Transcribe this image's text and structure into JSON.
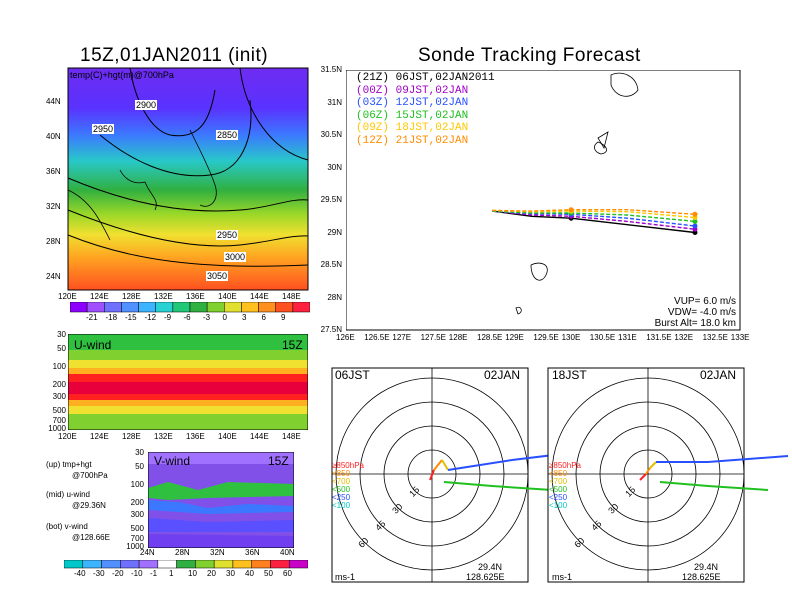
{
  "left_top": {
    "title": "15Z,01JAN2011 (init)",
    "field_label": "temp(C)+hgt(m)@700hPa",
    "lon_ticks": [
      "120E",
      "124E",
      "128E",
      "132E",
      "136E",
      "140E",
      "144E",
      "148E"
    ],
    "lat_ticks": [
      "24N",
      "28N",
      "32N",
      "36N",
      "40N",
      "44N"
    ],
    "contour_labels": [
      "2900",
      "2950",
      "2850",
      "2950",
      "3000",
      "3050"
    ],
    "colorbar_labels": [
      "-21",
      "-18",
      "-15",
      "-12",
      "-9",
      "-6",
      "-3",
      "0",
      "3",
      "6",
      "9"
    ],
    "colorbar_colors": [
      "#8c00ff",
      "#a050ff",
      "#7070ff",
      "#5090ff",
      "#3cb4ff",
      "#28d2d2",
      "#20c878",
      "#30b040",
      "#80d030",
      "#e0e030",
      "#ffc020",
      "#ff9020",
      "#ff5020",
      "#ff2040"
    ]
  },
  "u_wind": {
    "label": "U-wind",
    "time": "15Z",
    "p_ticks": [
      "30",
      "50",
      "100",
      "200",
      "300",
      "500",
      "700",
      "1000"
    ],
    "lon_ticks": [
      "120E",
      "124E",
      "128E",
      "132E",
      "136E",
      "140E",
      "144E",
      "148E"
    ]
  },
  "v_wind": {
    "label": "V-wind",
    "time": "15Z",
    "p_ticks": [
      "30",
      "50",
      "100",
      "200",
      "300",
      "500",
      "700",
      "1000"
    ],
    "lat_ticks": [
      "24N",
      "28N",
      "32N",
      "36N",
      "40N"
    ]
  },
  "legend_notes": {
    "up_1": "(up) tmp+hgt",
    "up_2": "@700hPa",
    "mid_1": "(mid) u-wind",
    "mid_2": "@29.36N",
    "bot_1": "(bot) v-wind",
    "bot_2": "@128.66E"
  },
  "wind_colorbar": {
    "labels": [
      "-40",
      "-30",
      "-20",
      "-10",
      "-1",
      "1",
      "10",
      "20",
      "30",
      "40",
      "50",
      "60"
    ],
    "colors": [
      "#00c8c8",
      "#3cb4ff",
      "#5090ff",
      "#7070ff",
      "#a070ff",
      "#ffffff",
      "#30b040",
      "#80d030",
      "#e0e030",
      "#ffc020",
      "#ff8020",
      "#ff2040",
      "#c800c8"
    ]
  },
  "tracking": {
    "title": "Sonde Tracking Forecast",
    "lat_ticks": [
      "31.5N",
      "31N",
      "30.5N",
      "30N",
      "29.5N",
      "29N",
      "28.5N",
      "28N",
      "27.5N"
    ],
    "lon_ticks": [
      "126E",
      "126.5E",
      "127E",
      "127.5E",
      "128E",
      "128.5E",
      "129E",
      "129.5E",
      "130E",
      "130.5E",
      "131E",
      "131.5E",
      "132E",
      "132.5E",
      "133E"
    ],
    "runs": [
      {
        "label": "(21Z)  06JST,02JAN2011",
        "color": "#000000"
      },
      {
        "label": "(00Z)  09JST,02JAN",
        "color": "#a000c8"
      },
      {
        "label": "(03Z)  12JST,02JAN",
        "color": "#2850ff"
      },
      {
        "label": "(06Z)  15JST,02JAN",
        "color": "#20c020"
      },
      {
        "label": "(09Z)  18JST,02JAN",
        "color": "#ffc800"
      },
      {
        "label": "(12Z)  21JST,02JAN",
        "color": "#ff8c00"
      }
    ],
    "vup": "VUP=  6.0  m/s",
    "vdw": "VDW=  -4.0  m/s",
    "burst": "Burst Alt=  18.0  km"
  },
  "hodo_left": {
    "time": "06JST",
    "date": "02JAN",
    "lat": "29.4N",
    "lon": "128.625E",
    "unit": "ms-1",
    "ring_labels": [
      "15",
      "30",
      "45",
      "60"
    ],
    "levels": [
      "≥850hPa",
      "<850",
      "<700",
      "<500",
      "<250",
      "<100"
    ],
    "level_colors": [
      "#ff2020",
      "#ff8c00",
      "#e0c000",
      "#20c020",
      "#2850ff",
      "#00c8c8"
    ]
  },
  "hodo_right": {
    "time": "18JST",
    "date": "02JAN",
    "lat": "29.4N",
    "lon": "128.625E",
    "unit": "ms-1",
    "ring_labels": [
      "15",
      "30",
      "45",
      "60"
    ],
    "levels": [
      "≥850hPa",
      "<850",
      "<700",
      "<500",
      "<250",
      "<100"
    ],
    "level_colors": [
      "#ff2020",
      "#ff8c00",
      "#e0c000",
      "#20c020",
      "#2850ff",
      "#00c8c8"
    ]
  },
  "chart_data": {
    "type": "line",
    "title": "Sonde Tracking Forecast",
    "xlabel": "",
    "ylabel": "",
    "xlim": [
      126,
      133
    ],
    "ylim": [
      27.5,
      31.5
    ],
    "grid": false,
    "legend": "top-left",
    "series": [
      {
        "name": "(21Z)  06JST,02JAN2011",
        "x": [
          128.6,
          129.3,
          130.0,
          131.0,
          132.2
        ],
        "y": [
          29.33,
          29.25,
          29.22,
          29.12,
          29.0
        ]
      },
      {
        "name": "(00Z)  09JST,02JAN",
        "x": [
          128.6,
          129.3,
          130.0,
          131.0,
          132.2
        ],
        "y": [
          29.33,
          29.27,
          29.25,
          29.17,
          29.05
        ]
      },
      {
        "name": "(03Z)  12JST,02JAN",
        "x": [
          128.6,
          129.3,
          130.0,
          131.0,
          132.2
        ],
        "y": [
          29.33,
          29.29,
          29.28,
          29.22,
          29.1
        ]
      },
      {
        "name": "(06Z)  15JST,02JAN",
        "x": [
          128.6,
          129.3,
          130.0,
          131.0,
          132.2
        ],
        "y": [
          29.33,
          29.3,
          29.3,
          29.27,
          29.17
        ]
      },
      {
        "name": "(09Z)  18JST,02JAN",
        "x": [
          128.6,
          129.3,
          130.0,
          131.0,
          132.2
        ],
        "y": [
          29.34,
          29.32,
          29.33,
          29.32,
          29.23
        ]
      },
      {
        "name": "(12Z)  21JST,02JAN",
        "x": [
          128.6,
          129.3,
          130.0,
          131.0,
          132.2
        ],
        "y": [
          29.34,
          29.33,
          29.35,
          29.35,
          29.28
        ]
      }
    ]
  }
}
